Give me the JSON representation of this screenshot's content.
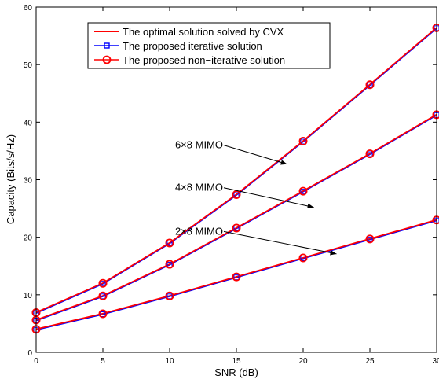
{
  "chart_data": {
    "type": "line",
    "title": "",
    "xlabel": "SNR (dB)",
    "ylabel": "Capacity (Bits/s/Hz)",
    "x": [
      0,
      5,
      10,
      15,
      20,
      25,
      30
    ],
    "xlim": [
      0,
      30
    ],
    "ylim": [
      0,
      60
    ],
    "xticks": [
      "0",
      "5",
      "10",
      "15",
      "20",
      "25",
      "30"
    ],
    "yticks": [
      "0",
      "10",
      "20",
      "30",
      "40",
      "50",
      "60"
    ],
    "grid": false,
    "legend_position": "top-left",
    "legend": [
      {
        "label": "The optimal solution solved by CVX",
        "color": "#ff0000",
        "marker": "none"
      },
      {
        "label": "The proposed iterative solution",
        "color": "#0000ff",
        "marker": "square"
      },
      {
        "label": "The proposed non−iterative solution",
        "color": "#ff0000",
        "marker": "circle"
      }
    ],
    "groups": [
      {
        "values": [
          6.9,
          12.0,
          19.0,
          27.4,
          36.7,
          46.5,
          56.4
        ]
      },
      {
        "values": [
          5.6,
          9.8,
          15.3,
          21.6,
          28.0,
          34.5,
          41.3
        ]
      },
      {
        "values": [
          4.0,
          6.7,
          9.8,
          13.1,
          16.4,
          19.7,
          23.0
        ]
      }
    ],
    "annotations": [
      {
        "text": "6×8 MIMO",
        "label_at": [
          14.0,
          36.0
        ],
        "arrow_to": [
          18.8,
          32.7
        ]
      },
      {
        "text": "4×8 MIMO",
        "label_at": [
          14.0,
          28.6
        ],
        "arrow_to": [
          20.8,
          25.2
        ]
      },
      {
        "text": "2×8 MIMO",
        "label_at": [
          14.0,
          21.0
        ],
        "arrow_to": [
          22.5,
          17.1
        ]
      }
    ],
    "colors": {
      "cvx": "#ff0000",
      "iterative": "#0000ff",
      "noniterative": "#ff0000"
    }
  }
}
